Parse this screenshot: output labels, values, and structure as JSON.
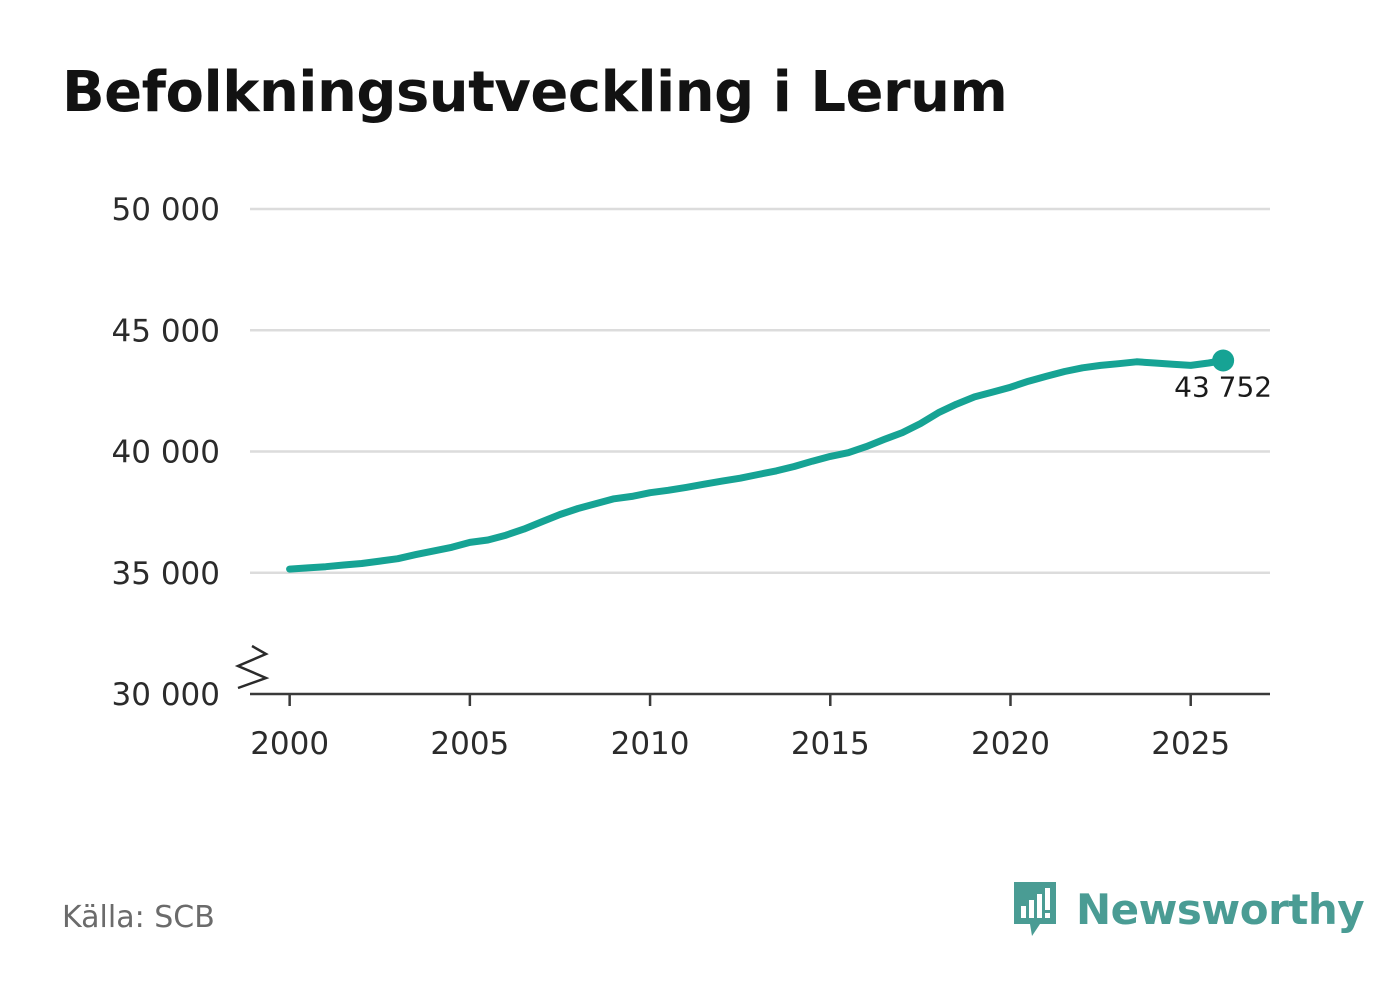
{
  "title": "Befolkningsutveckling i Lerum",
  "source": "Källa: SCB",
  "brand": {
    "name": "Newsworthy",
    "color": "#4a9c94",
    "icon": "bar-chart-speech-bubble-icon"
  },
  "chart_data": {
    "type": "line",
    "title": "Befolkningsutveckling i Lerum",
    "xlabel": "",
    "ylabel": "",
    "xlim": [
      1998.9,
      2027.2
    ],
    "ylim": [
      30000,
      50000
    ],
    "y_axis_broken": true,
    "grid": true,
    "x_ticks": [
      2000,
      2005,
      2010,
      2015,
      2020,
      2025
    ],
    "x_tick_labels": [
      "2000",
      "2005",
      "2010",
      "2015",
      "2020",
      "2025"
    ],
    "y_ticks": [
      30000,
      35000,
      40000,
      45000,
      50000
    ],
    "y_tick_labels": [
      "30 000",
      "35 000",
      "40 000",
      "45 000",
      "50 000"
    ],
    "color": "#16a394",
    "end_label": "43 752",
    "series": [
      {
        "x": [
          2000.0,
          2000.5,
          2001.0,
          2001.5,
          2002.0,
          2002.5,
          2003.0,
          2003.5,
          2004.0,
          2004.5,
          2005.0,
          2005.5,
          2006.0,
          2006.5,
          2007.0,
          2007.5,
          2008.0,
          2008.5,
          2009.0,
          2009.5,
          2010.0,
          2010.5,
          2011.0,
          2011.5,
          2012.0,
          2012.5,
          2013.0,
          2013.5,
          2014.0,
          2014.5,
          2015.0,
          2015.5,
          2016.0,
          2016.5,
          2017.0,
          2017.5,
          2018.0,
          2018.5,
          2019.0,
          2019.5,
          2020.0,
          2020.5,
          2021.0,
          2021.5,
          2022.0,
          2022.5,
          2023.0,
          2023.5,
          2024.0,
          2024.5,
          2025.0,
          2025.5,
          2025.9
        ],
        "y": [
          35150,
          35200,
          35250,
          35320,
          35380,
          35480,
          35580,
          35750,
          35900,
          36050,
          36250,
          36350,
          36550,
          36800,
          37100,
          37400,
          37650,
          37850,
          38050,
          38150,
          38300,
          38400,
          38520,
          38650,
          38780,
          38900,
          39050,
          39200,
          39380,
          39600,
          39800,
          39950,
          40200,
          40500,
          40780,
          41150,
          41600,
          41950,
          42250,
          42450,
          42650,
          42900,
          43100,
          43300,
          43450,
          43550,
          43620,
          43700,
          43650,
          43600,
          43550,
          43650,
          43752
        ]
      }
    ]
  }
}
